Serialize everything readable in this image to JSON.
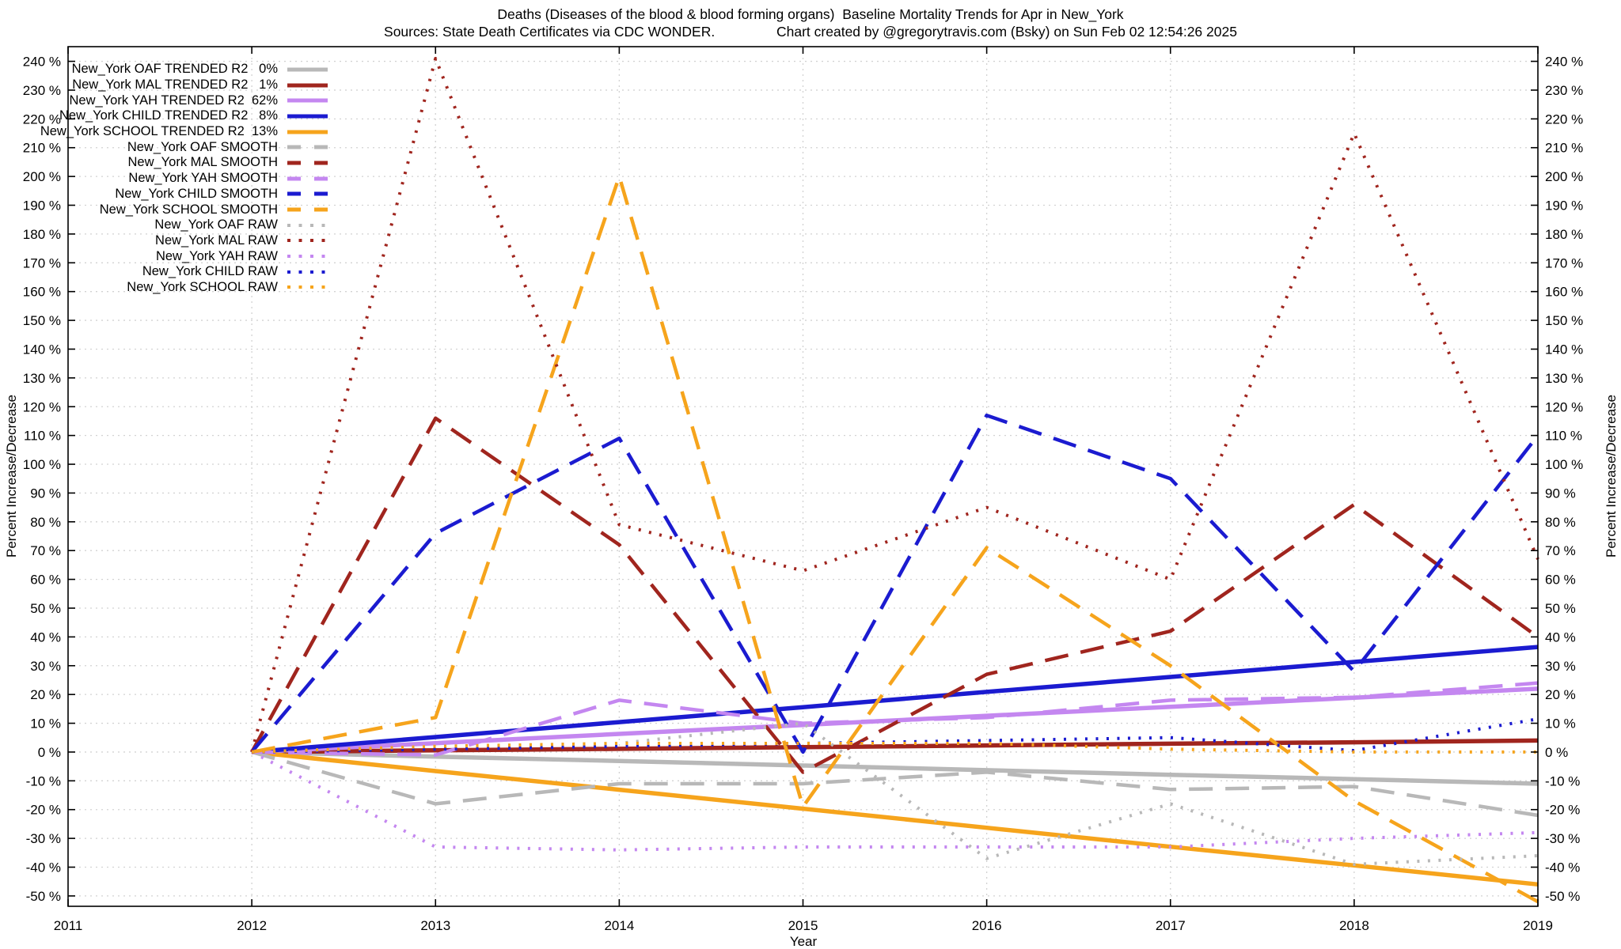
{
  "header": {
    "title": "Deaths (Diseases of the blood & blood forming organs)  Baseline Mortality Trends for Apr in New_York",
    "subtitle": "Sources: State Death Certificates via CDC WONDER.                Chart created by @gregorytravis.com (Bsky) on Sun Feb 02 12:54:26 2025"
  },
  "axes": {
    "x_label": "Year",
    "y_label_left": "Percent Increase/Decrease",
    "y_label_right": "Percent Increase/Decrease",
    "x_tick_values": [
      2011,
      2012,
      2013,
      2014,
      2015,
      2016,
      2017,
      2018,
      2019
    ],
    "x_tick_labels": [
      "2011",
      "2012",
      "2013",
      "2014",
      "2015",
      "2016",
      "2017",
      "2018",
      "2019"
    ],
    "y_tick_values": [
      -50,
      -40,
      -30,
      -20,
      -10,
      0,
      10,
      20,
      30,
      40,
      50,
      60,
      70,
      80,
      90,
      100,
      110,
      120,
      130,
      140,
      150,
      160,
      170,
      180,
      190,
      200,
      210,
      220,
      230,
      240
    ],
    "y_tick_labels": [
      "-50 %",
      "-40 %",
      "-30 %",
      "-20 %",
      "-10 %",
      "0 %",
      "10 %",
      "20 %",
      "30 %",
      "40 %",
      "50 %",
      "60 %",
      "70 %",
      "80 %",
      "90 %",
      "100 %",
      "110 %",
      "120 %",
      "130 %",
      "140 %",
      "150 %",
      "160 %",
      "170 %",
      "180 %",
      "190 %",
      "200 %",
      "210 %",
      "220 %",
      "230 %",
      "240 %"
    ]
  },
  "colors": {
    "gray": "#b8b8b8",
    "darkred": "#a0251e",
    "violet": "#c487f0",
    "blue": "#1b1bd0",
    "orange": "#f6a41c",
    "grid": "#d2d2d2",
    "axis": "#000000"
  },
  "chart_data": {
    "type": "line",
    "title": "Deaths (Diseases of the blood & blood forming organs)  Baseline Mortality Trends for Apr in New_York",
    "xlabel": "Year",
    "ylabel": "Percent Increase/Decrease",
    "x_range": [
      2011,
      2019
    ],
    "y_range": [
      -53.6,
      245.1
    ],
    "grid": true,
    "legend_position": "top-left",
    "years": [
      2012,
      2013,
      2014,
      2015,
      2016,
      2017,
      2018,
      2019
    ],
    "series": [
      {
        "name": "New_York OAF TRENDED",
        "legend_label": "New_York OAF TRENDED R2   0%",
        "group": "TRENDED",
        "color": "gray",
        "r2": "0%",
        "values": [
          0,
          -1.6,
          -3.1,
          -4.7,
          -6.3,
          -7.9,
          -9.4,
          -11
        ]
      },
      {
        "name": "New_York MAL TRENDED",
        "legend_label": "New_York MAL TRENDED R2   1%",
        "group": "TRENDED",
        "color": "darkred",
        "r2": "1%",
        "values": [
          0,
          0.6,
          1.1,
          1.7,
          2.3,
          2.9,
          3.4,
          4
        ]
      },
      {
        "name": "New_York YAH TRENDED",
        "legend_label": "New_York YAH TRENDED R2  62%",
        "group": "TRENDED",
        "color": "violet",
        "r2": "62%",
        "values": [
          0,
          3.1,
          6.3,
          9.4,
          12.6,
          15.7,
          18.9,
          22
        ]
      },
      {
        "name": "New_York CHILD TRENDED",
        "legend_label": "New_York CHILD TRENDED R2   8%",
        "group": "TRENDED",
        "color": "blue",
        "r2": "8%",
        "values": [
          0,
          5.2,
          10.4,
          15.6,
          20.9,
          26.1,
          31.3,
          36.5
        ]
      },
      {
        "name": "New_York SCHOOL TRENDED",
        "legend_label": "New_York SCHOOL TRENDED R2  13%",
        "group": "TRENDED",
        "color": "orange",
        "r2": "13%",
        "values": [
          0,
          -6.6,
          -13.1,
          -19.7,
          -26.3,
          -32.9,
          -39.4,
          -46
        ]
      },
      {
        "name": "New_York OAF SMOOTH",
        "legend_label": "New_York OAF SMOOTH",
        "group": "SMOOTH",
        "color": "gray",
        "values": [
          0,
          -18,
          -11,
          -11,
          -7,
          -13,
          -12,
          -22
        ]
      },
      {
        "name": "New_York MAL SMOOTH",
        "legend_label": "New_York MAL SMOOTH",
        "group": "SMOOTH",
        "color": "darkred",
        "values": [
          0,
          116,
          72,
          -7,
          27,
          42,
          86,
          40
        ]
      },
      {
        "name": "New_York YAH SMOOTH",
        "legend_label": "New_York YAH SMOOTH",
        "group": "SMOOTH",
        "color": "violet",
        "values": [
          0,
          -1,
          18,
          10,
          12,
          18,
          19,
          24
        ]
      },
      {
        "name": "New_York CHILD SMOOTH",
        "legend_label": "New_York CHILD SMOOTH",
        "group": "SMOOTH",
        "color": "blue",
        "values": [
          0,
          76,
          109,
          0,
          117,
          95,
          28,
          110
        ]
      },
      {
        "name": "New_York SCHOOL SMOOTH",
        "legend_label": "New_York SCHOOL SMOOTH",
        "group": "SMOOTH",
        "color": "orange",
        "values": [
          0,
          12,
          200,
          -19,
          71,
          30,
          -17,
          -52
        ]
      },
      {
        "name": "New_York OAF RAW",
        "legend_label": "New_York OAF RAW",
        "group": "RAW",
        "color": "gray",
        "values": [
          0,
          2,
          3,
          10,
          -37,
          -18,
          -39,
          -36
        ]
      },
      {
        "name": "New_York MAL RAW",
        "legend_label": "New_York MAL RAW",
        "group": "RAW",
        "color": "darkred",
        "values": [
          0,
          241,
          79,
          63,
          85,
          60,
          215,
          67
        ]
      },
      {
        "name": "New_York YAH RAW",
        "legend_label": "New_York YAH RAW",
        "group": "RAW",
        "color": "violet",
        "values": [
          0,
          -33,
          -34,
          -33,
          -33,
          -33,
          -30,
          -28
        ]
      },
      {
        "name": "New_York CHILD RAW",
        "legend_label": "New_York CHILD RAW",
        "group": "RAW",
        "color": "blue",
        "values": [
          0,
          1,
          2,
          3,
          4,
          5,
          0.5,
          11.5
        ]
      },
      {
        "name": "New_York SCHOOL RAW",
        "legend_label": "New_York SCHOOL RAW",
        "group": "RAW",
        "color": "orange",
        "values": [
          0,
          2,
          3,
          3,
          3,
          1,
          0,
          0
        ]
      }
    ]
  }
}
